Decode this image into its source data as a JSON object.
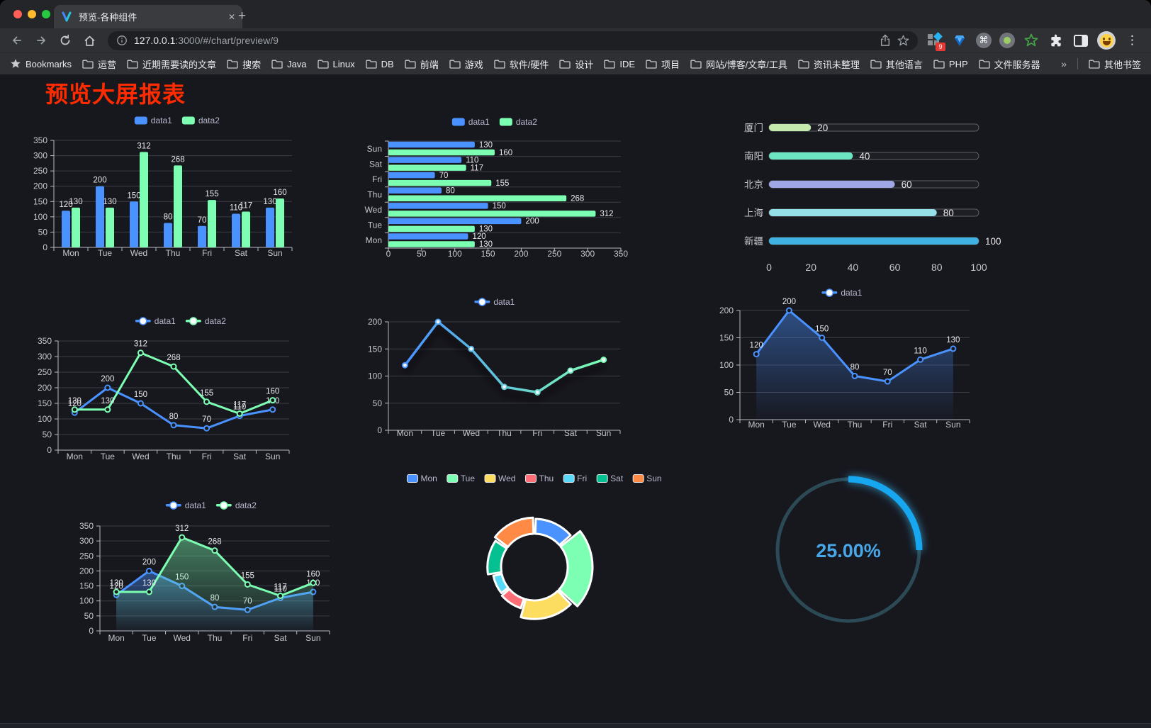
{
  "browser": {
    "traffic_lights": [
      "#ff5f57",
      "#febc2e",
      "#28c840"
    ],
    "tab": {
      "title": "预览-各种组件",
      "close_glyph": "✕",
      "new_tab_glyph": "+"
    },
    "address": {
      "host": "127.0.0.1",
      "rest": ":3000/#/chart/preview/9"
    },
    "toolbar_icons": {
      "extension_badge": "9",
      "command_glyph": "⌘",
      "menu_glyph": "⋮"
    },
    "bookmarks": {
      "label": "Bookmarks",
      "items": [
        "运营",
        "近期需要读的文章",
        "搜索",
        "Java",
        "Linux",
        "DB",
        "前端",
        "游戏",
        "软件/硬件",
        "设计",
        "IDE",
        "项目",
        "网站/博客/文章/工具",
        "资讯未整理",
        "其他语言",
        "PHP",
        "文件服务器"
      ],
      "overflow_glyph": "»",
      "other_label": "其他书签"
    }
  },
  "page": {
    "title": "预览大屏报表"
  },
  "colors": {
    "bg": "#17171e",
    "title_red": "#ff2b00",
    "accent_blue": "#4992ff",
    "accent_green": "#7cffb2",
    "axis": "#b9bac4",
    "split": "#3b3d47",
    "dim": "#c6c7ce",
    "label": "#e8e8ea",
    "legend_text": "#b9b8ce"
  },
  "chart_data": [
    {
      "id": "bar-vertical",
      "type": "bar",
      "categories": [
        "Mon",
        "Tue",
        "Wed",
        "Thu",
        "Fri",
        "Sat",
        "Sun"
      ],
      "series": [
        {
          "name": "data1",
          "color": "#4992ff",
          "values": [
            120,
            200,
            150,
            80,
            70,
            110,
            130
          ]
        },
        {
          "name": "data2",
          "color": "#7cffb2",
          "values": [
            130,
            130,
            312,
            268,
            155,
            117,
            160
          ]
        }
      ],
      "ylim": [
        0,
        350
      ],
      "ystep": 50,
      "grid": true,
      "legend_position": "top",
      "show_labels": true
    },
    {
      "id": "bar-horizontal",
      "type": "bar-horizontal",
      "categories": [
        "Mon",
        "Tue",
        "Wed",
        "Thu",
        "Fri",
        "Sat",
        "Sun"
      ],
      "series": [
        {
          "name": "data1",
          "color": "#4992ff",
          "values": [
            120,
            200,
            150,
            80,
            70,
            110,
            130
          ]
        },
        {
          "name": "data2",
          "color": "#7cffb2",
          "values": [
            130,
            130,
            312,
            268,
            155,
            117,
            160
          ]
        }
      ],
      "xlim": [
        0,
        350
      ],
      "xstep": 50,
      "show_labels": true
    },
    {
      "id": "city-progress",
      "type": "progress-bar",
      "rows": [
        {
          "label": "厦门",
          "value": 20,
          "color": "#c4ebad"
        },
        {
          "label": "南阳",
          "value": 40,
          "color": "#6be6c1"
        },
        {
          "label": "北京",
          "value": 60,
          "color": "#a0a7e6"
        },
        {
          "label": "上海",
          "value": 80,
          "color": "#96dee8"
        },
        {
          "label": "新疆",
          "value": 100,
          "color": "#3fb1e3"
        }
      ],
      "xlim": [
        0,
        100
      ],
      "xticks": [
        0,
        20,
        40,
        60,
        80,
        100
      ]
    },
    {
      "id": "line-two-series",
      "type": "line",
      "categories": [
        "Mon",
        "Tue",
        "Wed",
        "Thu",
        "Fri",
        "Sat",
        "Sun"
      ],
      "series": [
        {
          "name": "data1",
          "color": "#4992ff",
          "values": [
            120,
            200,
            150,
            80,
            70,
            110,
            130
          ]
        },
        {
          "name": "data2",
          "color": "#7cffb2",
          "values": [
            130,
            130,
            312,
            268,
            155,
            117,
            160
          ]
        }
      ],
      "ylim": [
        0,
        350
      ],
      "ystep": 50,
      "show_labels": true
    },
    {
      "id": "line-gradient",
      "type": "line-gradient",
      "categories": [
        "Mon",
        "Tue",
        "Wed",
        "Thu",
        "Fri",
        "Sat",
        "Sun"
      ],
      "series": [
        {
          "name": "data1",
          "gradient": [
            "#4992ff",
            "#7cffb2"
          ],
          "values": [
            120,
            200,
            150,
            80,
            70,
            110,
            130
          ]
        }
      ],
      "ylim": [
        0,
        200
      ],
      "ystep": 50,
      "show_labels": false
    },
    {
      "id": "area-single",
      "type": "area",
      "categories": [
        "Mon",
        "Tue",
        "Wed",
        "Thu",
        "Fri",
        "Sat",
        "Sun"
      ],
      "series": [
        {
          "name": "data1",
          "color": "#4992ff",
          "values": [
            120,
            200,
            150,
            80,
            70,
            110,
            130
          ]
        }
      ],
      "ylim": [
        0,
        200
      ],
      "ystep": 50,
      "show_labels": true
    },
    {
      "id": "area-two-series",
      "type": "area",
      "categories": [
        "Mon",
        "Tue",
        "Wed",
        "Thu",
        "Fri",
        "Sat",
        "Sun"
      ],
      "series": [
        {
          "name": "data1",
          "color": "#4992ff",
          "values": [
            120,
            200,
            150,
            80,
            70,
            110,
            130
          ]
        },
        {
          "name": "data2",
          "color": "#7cffb2",
          "values": [
            130,
            130,
            312,
            268,
            155,
            117,
            160
          ]
        }
      ],
      "ylim": [
        0,
        350
      ],
      "ystep": 50,
      "show_labels": true
    },
    {
      "id": "donut-rose",
      "type": "pie",
      "legend": [
        "Mon",
        "Tue",
        "Wed",
        "Thu",
        "Fri",
        "Sat",
        "Sun"
      ],
      "values": [
        120,
        200,
        150,
        80,
        70,
        110,
        130
      ],
      "colors": [
        "#4992ff",
        "#7cffb2",
        "#fddd60",
        "#ff6e76",
        "#58d9f9",
        "#05c091",
        "#ff8a45"
      ]
    },
    {
      "id": "gauge",
      "type": "gauge",
      "value_text": "25.00%",
      "percent": 25,
      "arc_color": "#17a7f0",
      "track_color": "#2c4a56",
      "text_color": "#47a7e8"
    }
  ]
}
